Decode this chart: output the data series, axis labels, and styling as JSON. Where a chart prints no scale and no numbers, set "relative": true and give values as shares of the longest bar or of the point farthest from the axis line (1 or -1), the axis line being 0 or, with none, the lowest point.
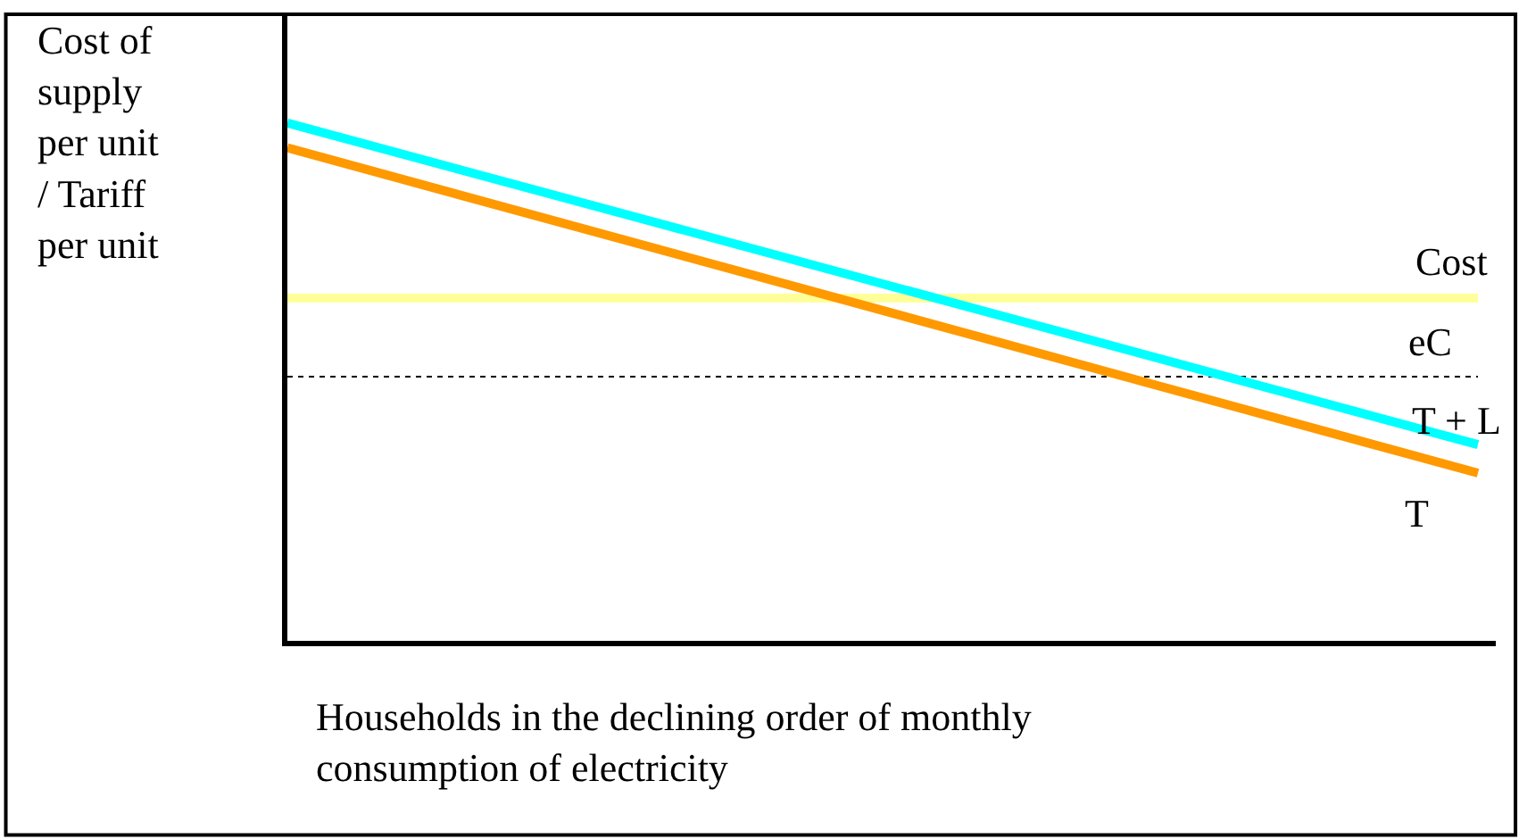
{
  "chart_data": {
    "type": "line",
    "relative": true,
    "ylabel": "Cost of supply per unit / Tariff per unit",
    "xlabel": "Households in the declining order of monthly consumption of electricity",
    "categories": [
      null,
      null
    ],
    "tick_labels": false,
    "legend": false,
    "marker": "none",
    "series": [
      {
        "name": "Cost",
        "color": "#ffff99",
        "values": [
          0.662,
          0.662
        ]
      },
      {
        "name": "eC",
        "color": "#000000",
        "line_style": "dotted",
        "values": [
          0.51,
          0.51
        ]
      },
      {
        "name": "T + L",
        "color": "#00ffff",
        "values": [
          1,
          0.379
        ]
      },
      {
        "name": "T",
        "color": "#ff9900",
        "values": [
          0.952,
          0.324
        ]
      }
    ]
  }
}
